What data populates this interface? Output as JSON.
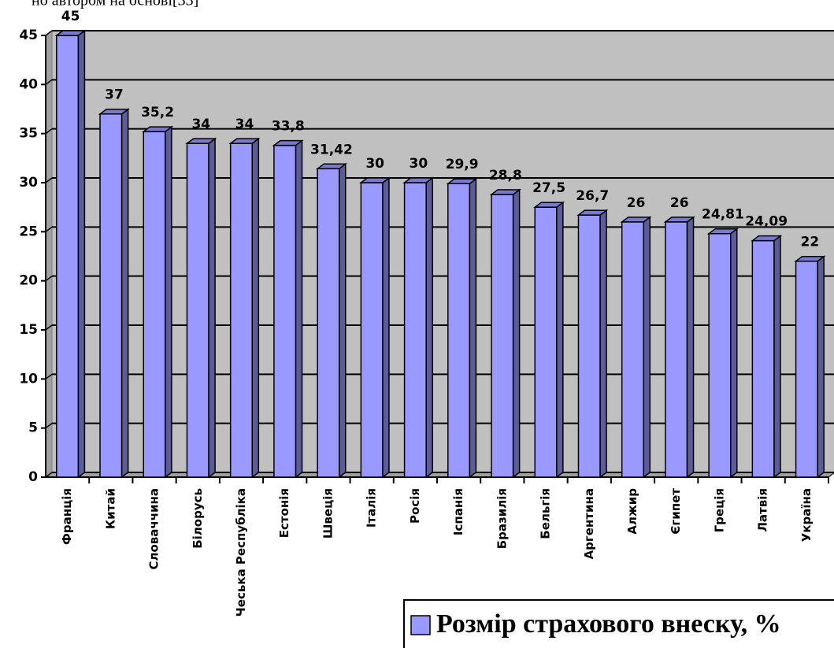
{
  "chart_data": {
    "type": "bar3d",
    "caption": "но автором на основі[33]",
    "categories": [
      "Франція",
      "Китай",
      "Словаччина",
      "Білорусь",
      "Чеська Республіка",
      "Естонія",
      "Швеція",
      "Італія",
      "Росія",
      "Іспанія",
      "Бразилія",
      "Бельгія",
      "Аргентина",
      "Алжир",
      "Єгипет",
      "Греція",
      "Латвія",
      "Україна"
    ],
    "series": [
      {
        "name": "Розмір страхового внеску, %",
        "color": "#9999ff",
        "values": [
          45,
          37,
          35.2,
          34,
          34,
          33.8,
          31.42,
          30,
          30,
          29.9,
          28.8,
          27.5,
          26.7,
          26,
          26,
          24.81,
          24.09,
          22
        ],
        "value_labels": [
          "45",
          "37",
          "35,2",
          "34",
          "34",
          "33,8",
          "31,42",
          "30",
          "30",
          "29,9",
          "28,8",
          "27,5",
          "26,7",
          "26",
          "26",
          "24,81",
          "24,09",
          "22"
        ]
      }
    ],
    "ylim": [
      0,
      45
    ],
    "yticks": [
      0,
      5,
      10,
      15,
      20,
      25,
      30,
      35,
      40,
      45
    ],
    "grid": true,
    "legend": "bottom-right"
  }
}
